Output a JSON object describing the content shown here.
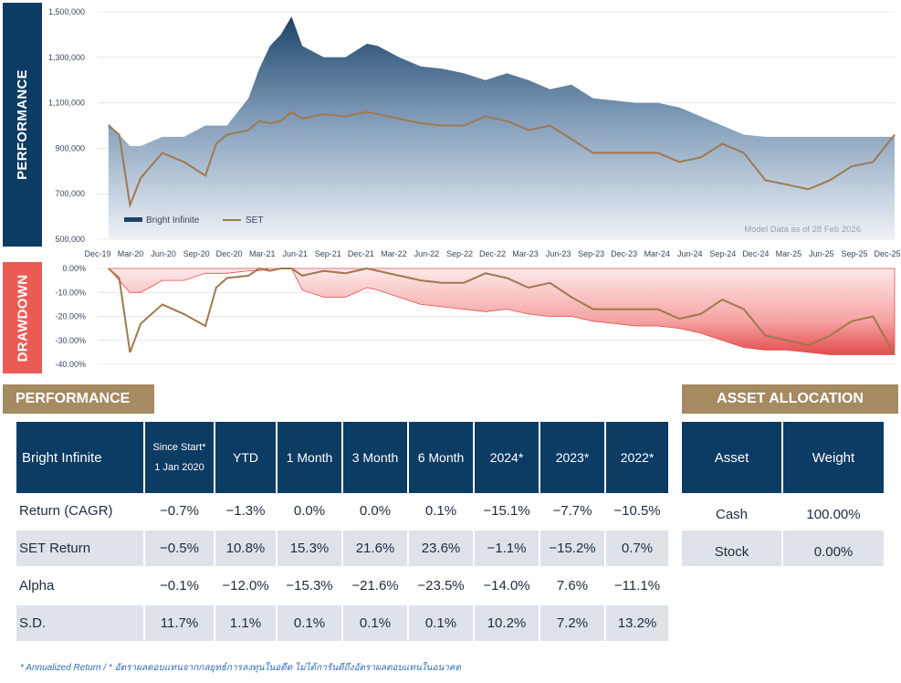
{
  "performance_chart": {
    "side_label": "PERFORMANCE",
    "model_note": "Model Data as of 28 Feb 2026",
    "colors": {
      "bright": "#1c4468",
      "set": "#a0784f",
      "panel": "#0c3b63"
    }
  },
  "drawdown_chart": {
    "side_label": "DRAWDOWN",
    "colors": {
      "bright": "#e44c4c",
      "set": "#a0784f",
      "panel": "#ec5a55"
    }
  },
  "chart_data": [
    {
      "type": "area",
      "title": "",
      "legend": [
        "Bright Infinite",
        "SET"
      ],
      "legend_position": "bottom-left",
      "grid": true,
      "y_ticks": [
        "500,000",
        "700,000",
        "900,000",
        "1,100,000",
        "1,300,000",
        "1,500,000"
      ],
      "ylim": [
        500000,
        1500000
      ],
      "x_ticks": [
        "Dec-19",
        "Mar-20",
        "Jun-20",
        "Sep-20",
        "Dec-20",
        "Mar-21",
        "Jun-21",
        "Sep-21",
        "Dec-21",
        "Mar-22",
        "Jun-22",
        "Sep-22",
        "Dec-22",
        "Mar-23",
        "Jun-23",
        "Sep-23",
        "Dec-23",
        "Mar-24",
        "Jun-24",
        "Sep-24",
        "Dec-24",
        "Mar-25",
        "Jun-25",
        "Sep-25",
        "Dec-25"
      ],
      "x": [
        "2020-01",
        "2020-02",
        "2020-03",
        "2020-04",
        "2020-06",
        "2020-08",
        "2020-10",
        "2020-11",
        "2020-12",
        "2021-02",
        "2021-03",
        "2021-04",
        "2021-05",
        "2021-06",
        "2021-07",
        "2021-09",
        "2021-11",
        "2022-01",
        "2022-02",
        "2022-04",
        "2022-06",
        "2022-08",
        "2022-10",
        "2022-12",
        "2023-02",
        "2023-04",
        "2023-06",
        "2023-08",
        "2023-10",
        "2023-12",
        "2024-02",
        "2024-04",
        "2024-06",
        "2024-08",
        "2024-10",
        "2024-12",
        "2025-02",
        "2025-04",
        "2025-06",
        "2025-08",
        "2025-10",
        "2025-12",
        "2026-02"
      ],
      "series": [
        {
          "name": "Bright Infinite",
          "values": [
            1010000,
            960000,
            910000,
            910000,
            950000,
            950000,
            1000000,
            1000000,
            1000000,
            1120000,
            1250000,
            1350000,
            1400000,
            1480000,
            1350000,
            1300000,
            1300000,
            1360000,
            1350000,
            1300000,
            1260000,
            1250000,
            1230000,
            1200000,
            1230000,
            1200000,
            1160000,
            1180000,
            1120000,
            1110000,
            1100000,
            1100000,
            1080000,
            1040000,
            1000000,
            960000,
            950000,
            950000,
            950000,
            950000,
            950000,
            950000,
            950000
          ]
        },
        {
          "name": "SET",
          "values": [
            1000000,
            960000,
            650000,
            770000,
            880000,
            840000,
            780000,
            920000,
            960000,
            980000,
            1020000,
            1010000,
            1020000,
            1060000,
            1030000,
            1050000,
            1040000,
            1060000,
            1050000,
            1030000,
            1010000,
            1000000,
            1000000,
            1040000,
            1020000,
            980000,
            1000000,
            940000,
            880000,
            880000,
            880000,
            880000,
            840000,
            860000,
            920000,
            880000,
            760000,
            740000,
            720000,
            760000,
            820000,
            840000,
            960000
          ]
        }
      ]
    },
    {
      "type": "area",
      "title": "",
      "grid": true,
      "y_ticks": [
        "0.00%",
        "-10.00%",
        "-20.00%",
        "-30.00%",
        "-40.00%"
      ],
      "ylim": [
        -40,
        0
      ],
      "x": [
        "2020-01",
        "2020-02",
        "2020-03",
        "2020-04",
        "2020-06",
        "2020-08",
        "2020-10",
        "2020-11",
        "2020-12",
        "2021-02",
        "2021-03",
        "2021-04",
        "2021-05",
        "2021-06",
        "2021-07",
        "2021-09",
        "2021-11",
        "2022-01",
        "2022-02",
        "2022-04",
        "2022-06",
        "2022-08",
        "2022-10",
        "2022-12",
        "2023-02",
        "2023-04",
        "2023-06",
        "2023-08",
        "2023-10",
        "2023-12",
        "2024-02",
        "2024-04",
        "2024-06",
        "2024-08",
        "2024-10",
        "2024-12",
        "2025-02",
        "2025-04",
        "2025-06",
        "2025-08",
        "2025-10",
        "2025-12",
        "2026-02"
      ],
      "series": [
        {
          "name": "Bright Infinite",
          "values": [
            0,
            -5,
            -10,
            -10,
            -5,
            -5,
            -2,
            -2,
            -2,
            -1,
            -1,
            0,
            0,
            0,
            -9,
            -12,
            -12,
            -8,
            -9,
            -12,
            -15,
            -16,
            -17,
            -18,
            -17,
            -19,
            -20,
            -20,
            -22,
            -23,
            -24,
            -24,
            -25,
            -27,
            -30,
            -33,
            -34,
            -34,
            -35,
            -36,
            -36,
            -36,
            -36
          ]
        },
        {
          "name": "SET",
          "values": [
            0,
            -4,
            -35,
            -23,
            -15,
            -19,
            -24,
            -8,
            -4,
            -3,
            0,
            -1,
            0,
            0,
            -3,
            -1,
            -2,
            0,
            -1,
            -3,
            -5,
            -6,
            -6,
            -2,
            -4,
            -8,
            -6,
            -12,
            -17,
            -17,
            -17,
            -17,
            -21,
            -19,
            -13,
            -17,
            -28,
            -30,
            -32,
            -28,
            -22,
            -20,
            -36
          ]
        }
      ]
    }
  ],
  "performance_section": {
    "title": "PERFORMANCE",
    "headers": [
      "Bright Infinite",
      "Since Start*",
      "1 Jan 2020",
      "YTD",
      "1 Month",
      "3 Month",
      "6 Month",
      "2024*",
      "2023*",
      "2022*"
    ],
    "rows": [
      {
        "label": "Return (CAGR)",
        "values": [
          "−0.7%",
          "−1.3%",
          "0.0%",
          "0.0%",
          "0.1%",
          "−15.1%",
          "−7.7%",
          "−10.5%"
        ],
        "tones": [
          "",
          "",
          "",
          "",
          "",
          "",
          "",
          ""
        ]
      },
      {
        "label": "SET Return",
        "values": [
          "−0.5%",
          "10.8%",
          "15.3%",
          "21.6%",
          "23.6%",
          "−1.1%",
          "−15.2%",
          "0.7%"
        ],
        "tones": [
          "",
          "",
          "",
          "",
          "",
          "",
          "",
          ""
        ]
      },
      {
        "label": "Alpha",
        "values": [
          "−0.1%",
          "−12.0%",
          "−15.3%",
          "−21.6%",
          "−23.5%",
          "−14.0%",
          "7.6%",
          "−11.1%"
        ],
        "tones": [
          "neg",
          "neg",
          "neg",
          "neg",
          "neg",
          "neg",
          "pos",
          "neg"
        ]
      },
      {
        "label": "S.D.",
        "values": [
          "11.7%",
          "1.1%",
          "0.1%",
          "0.1%",
          "0.1%",
          "10.2%",
          "7.2%",
          "13.2%"
        ],
        "tones": [
          "",
          "",
          "",
          "",
          "",
          "",
          "",
          ""
        ]
      }
    ]
  },
  "allocation_section": {
    "title": "ASSET ALLOCATION",
    "headers": [
      "Asset",
      "Weight"
    ],
    "rows": [
      {
        "asset": "Cash",
        "weight": "100.00%"
      },
      {
        "asset": "Stock",
        "weight": "0.00%"
      }
    ]
  },
  "footnote": "* Annualized Return  /  * อัตราผลตอบแทนจากกลยุทธ์การลงทุนในอดีต ไม่ได้การันตีถึงอัตราผลตอบแทนในอนาคต"
}
